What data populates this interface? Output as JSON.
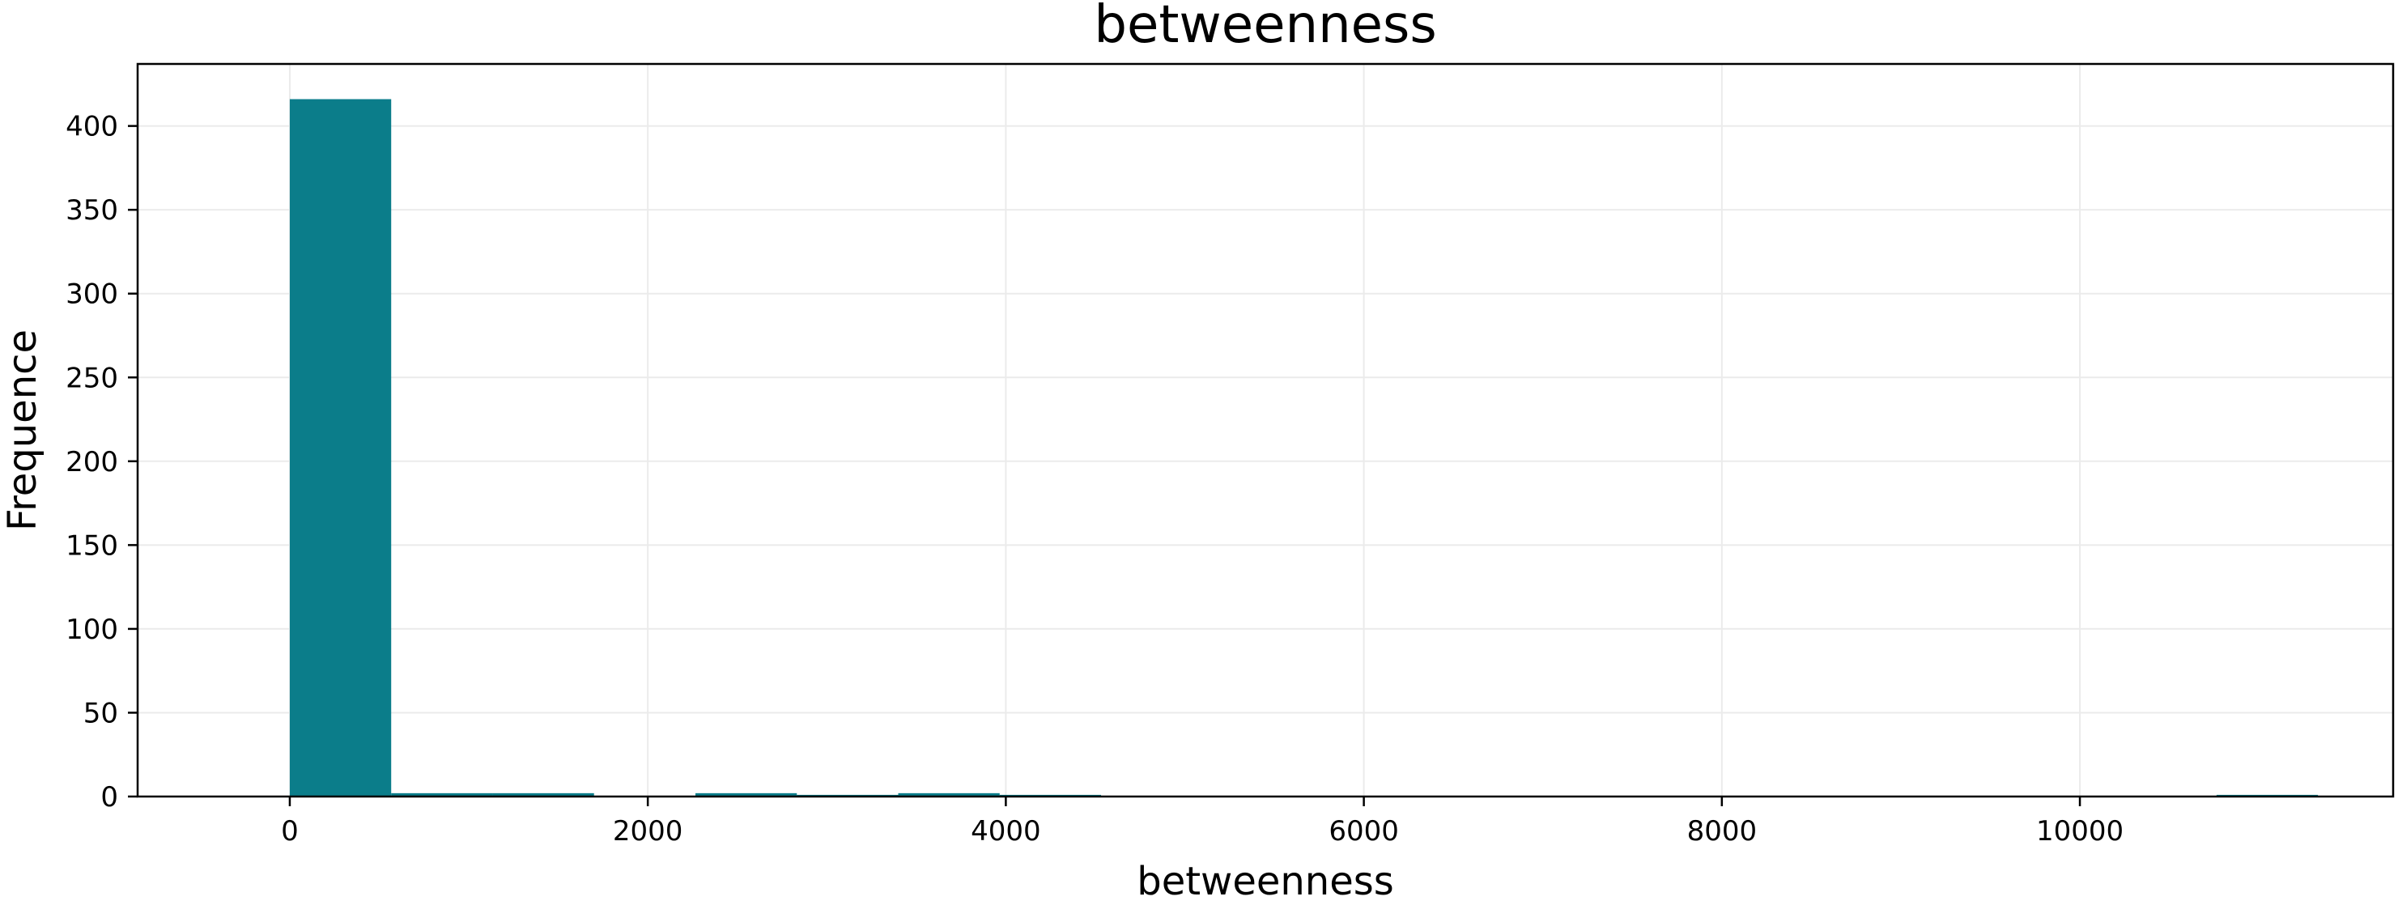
{
  "chart_data": {
    "type": "bar",
    "title": "betweenness",
    "xlabel": "betweenness",
    "ylabel": "Frequence",
    "xlim": [
      -850,
      11750
    ],
    "ylim": [
      0,
      437
    ],
    "grid": true,
    "xticks": [
      0,
      2000,
      4000,
      6000,
      8000,
      10000
    ],
    "yticks": [
      0,
      50,
      100,
      150,
      200,
      250,
      300,
      350,
      400
    ],
    "bar_color": "#0b7d8a",
    "bin_width": 566.5,
    "bins": [
      {
        "x0": 0,
        "value": 416
      },
      {
        "x0": 566.5,
        "value": 2
      },
      {
        "x0": 1133,
        "value": 2
      },
      {
        "x0": 1699.5,
        "value": 0
      },
      {
        "x0": 2266,
        "value": 2
      },
      {
        "x0": 2832.5,
        "value": 1
      },
      {
        "x0": 3399,
        "value": 2
      },
      {
        "x0": 3965.5,
        "value": 1
      },
      {
        "x0": 4532,
        "value": 0
      },
      {
        "x0": 5098.5,
        "value": 0
      },
      {
        "x0": 5665,
        "value": 0
      },
      {
        "x0": 6231.5,
        "value": 0
      },
      {
        "x0": 6798,
        "value": 0
      },
      {
        "x0": 7364.5,
        "value": 0
      },
      {
        "x0": 7931,
        "value": 0
      },
      {
        "x0": 8497.5,
        "value": 0
      },
      {
        "x0": 9064,
        "value": 0
      },
      {
        "x0": 9630.5,
        "value": 0
      },
      {
        "x0": 10197,
        "value": 0
      },
      {
        "x0": 10763.5,
        "value": 1
      }
    ]
  }
}
